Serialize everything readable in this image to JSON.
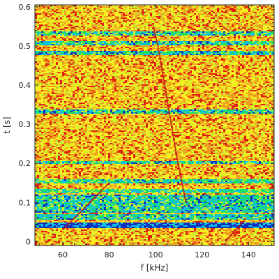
{
  "chart_data": {
    "type": "heatmap",
    "title": "",
    "xlabel": "f [kHz]",
    "ylabel": "t [s]",
    "xlim": [
      48,
      151
    ],
    "ylim": [
      -0.01,
      0.605
    ],
    "xticks": [
      60,
      80,
      100,
      120,
      140
    ],
    "yticks": [
      0,
      0.1,
      0.2,
      0.3,
      0.4,
      0.5,
      0.6
    ],
    "xtick_labels": [
      "60",
      "80",
      "100",
      "120",
      "140"
    ],
    "ytick_labels": [
      "0",
      "0.1",
      "0.2",
      "0.3",
      "0.4",
      "0.5",
      "0.6"
    ],
    "colormap": [
      "#1030c0",
      "#10c0e0",
      "#20e060",
      "#c8f030",
      "#f8f020",
      "#f0a020",
      "#e02010"
    ],
    "background_level": 0.72,
    "low_level_bands": [
      {
        "t_min": 0.033,
        "t_max": 0.05,
        "level": 0.08
      },
      {
        "t_min": 0.055,
        "t_max": 0.072,
        "level": 0.3
      },
      {
        "t_min": 0.075,
        "t_max": 0.12,
        "level": 0.3
      },
      {
        "t_min": 0.125,
        "t_max": 0.135,
        "level": 0.35
      },
      {
        "t_min": 0.148,
        "t_max": 0.158,
        "level": 0.32
      },
      {
        "t_min": 0.197,
        "t_max": 0.207,
        "level": 0.3
      },
      {
        "t_min": 0.327,
        "t_max": 0.337,
        "level": 0.28
      },
      {
        "t_min": 0.478,
        "t_max": 0.488,
        "level": 0.28
      },
      {
        "t_min": 0.503,
        "t_max": 0.513,
        "level": 0.3
      },
      {
        "t_min": 0.527,
        "t_max": 0.537,
        "level": 0.3
      }
    ],
    "traces": [
      {
        "f": [
          99,
          101,
          103,
          105,
          107,
          109,
          111,
          113
        ],
        "t": [
          0.55,
          0.5,
          0.43,
          0.36,
          0.29,
          0.22,
          0.16,
          0.1
        ]
      },
      {
        "f": [
          60,
          65,
          70,
          75,
          80
        ],
        "t": [
          0.03,
          0.06,
          0.09,
          0.12,
          0.15
        ]
      },
      {
        "f": [
          130,
          133,
          136,
          139
        ],
        "t": [
          0.0,
          0.02,
          0.04,
          0.06
        ]
      }
    ]
  }
}
